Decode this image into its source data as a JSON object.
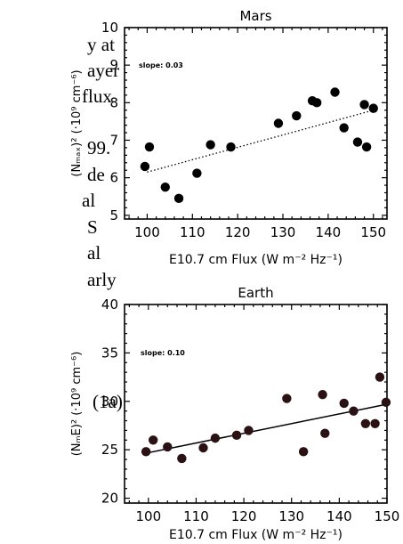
{
  "body_text": {
    "lines": [
      "y at",
      "ayer",
      " flux",
      "99.",
      "de",
      "al",
      "S",
      "al",
      "arly"
    ]
  },
  "equation_label": "(1a)",
  "chart_data": [
    {
      "type": "scatter",
      "title": "Mars",
      "xlabel": "E10.7 cm Flux (W m⁻² Hz⁻¹)",
      "ylabel": "(Nₘₐₓ)² (·10⁹ cm⁻⁶)",
      "annotation": "slope: 0.03",
      "xlim": [
        95,
        153
      ],
      "ylim": [
        4.9,
        10
      ],
      "xticks": [
        100,
        110,
        120,
        130,
        140,
        150
      ],
      "yticks": [
        5,
        6,
        7,
        8,
        9,
        10
      ],
      "fit_line": {
        "style": "dotted",
        "x": [
          100,
          150
        ],
        "y": [
          6.15,
          7.8
        ]
      },
      "points": [
        {
          "x": 99.5,
          "y": 6.3
        },
        {
          "x": 100.5,
          "y": 6.82
        },
        {
          "x": 104,
          "y": 5.75
        },
        {
          "x": 107,
          "y": 5.45
        },
        {
          "x": 111,
          "y": 6.12
        },
        {
          "x": 114,
          "y": 6.88
        },
        {
          "x": 118.5,
          "y": 6.82
        },
        {
          "x": 129,
          "y": 7.45
        },
        {
          "x": 133,
          "y": 7.65
        },
        {
          "x": 136.5,
          "y": 8.05
        },
        {
          "x": 137.5,
          "y": 8.0
        },
        {
          "x": 141.5,
          "y": 8.28
        },
        {
          "x": 143.5,
          "y": 7.33
        },
        {
          "x": 146.5,
          "y": 6.95
        },
        {
          "x": 148,
          "y": 7.95
        },
        {
          "x": 148.5,
          "y": 6.82
        },
        {
          "x": 150,
          "y": 7.85
        }
      ]
    },
    {
      "type": "scatter",
      "title": "Earth",
      "xlabel": "E10.7 cm Flux (W m⁻² Hz⁻¹)",
      "ylabel": "(NₘE)² (·10⁹ cm⁻⁶)",
      "annotation": "slope: 0.10",
      "xlim": [
        95,
        150
      ],
      "ylim": [
        19.5,
        40
      ],
      "xticks": [
        100,
        110,
        120,
        130,
        140,
        150
      ],
      "yticks": [
        20,
        25,
        30,
        35,
        40
      ],
      "fit_line": {
        "style": "solid",
        "x": [
          100,
          150
        ],
        "y": [
          24.7,
          29.7
        ]
      },
      "points": [
        {
          "x": 99.5,
          "y": 24.8
        },
        {
          "x": 101,
          "y": 26.0
        },
        {
          "x": 104,
          "y": 25.3
        },
        {
          "x": 107,
          "y": 24.1
        },
        {
          "x": 111.5,
          "y": 25.2
        },
        {
          "x": 114,
          "y": 26.2
        },
        {
          "x": 118.5,
          "y": 26.5
        },
        {
          "x": 121,
          "y": 27.0
        },
        {
          "x": 129,
          "y": 30.3
        },
        {
          "x": 132.5,
          "y": 24.8
        },
        {
          "x": 136.5,
          "y": 30.7
        },
        {
          "x": 137,
          "y": 26.7
        },
        {
          "x": 141,
          "y": 29.8
        },
        {
          "x": 143,
          "y": 29.0
        },
        {
          "x": 145.5,
          "y": 27.7
        },
        {
          "x": 147.5,
          "y": 27.7
        },
        {
          "x": 148.5,
          "y": 32.5
        },
        {
          "x": 149.8,
          "y": 29.9
        }
      ]
    }
  ]
}
